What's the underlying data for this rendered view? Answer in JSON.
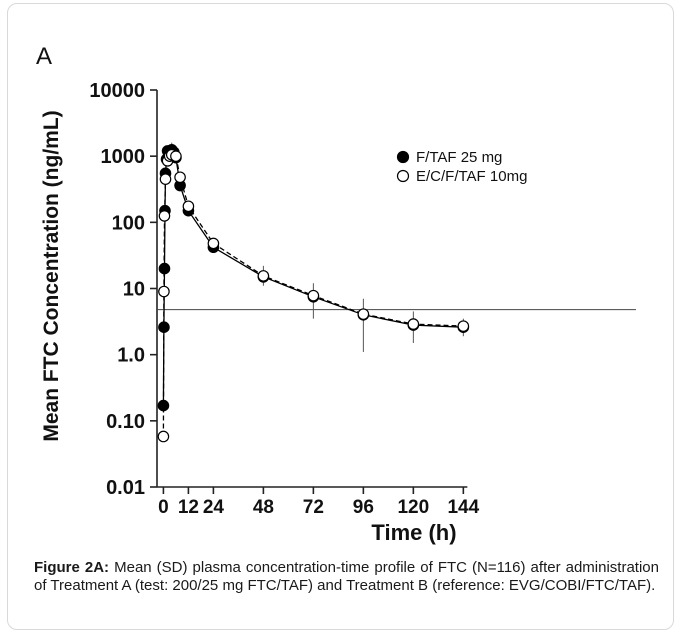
{
  "figure": {
    "panel_label": "A",
    "caption_bold": "Figure 2A:",
    "caption_text": " Mean (SD) plasma concentration-time profile of FTC (N=116) after administration of Treatment A (test: 200/25 mg FTC/TAF) and Treatment B (reference: EVG/COBI/FTC/TAF)."
  },
  "chart_data": {
    "type": "line",
    "xlabel": "Time (h)",
    "ylabel": "Mean FTC Concentration (ng/mL)",
    "y_scale": "log",
    "ylim": [
      0.01,
      10000
    ],
    "xlim": [
      -5,
      152
    ],
    "x_ticks": [
      0,
      12,
      24,
      48,
      72,
      96,
      120,
      144
    ],
    "x_tick_labels": [
      "0",
      "12",
      "24",
      "48",
      "72",
      "96",
      "120",
      "144"
    ],
    "y_ticks": [
      0.01,
      0.1,
      1,
      10,
      100,
      1000,
      10000
    ],
    "y_tick_labels": [
      "0.01",
      "0.10",
      "1.0",
      "10",
      "100",
      "1000",
      "10000"
    ],
    "reference_line": 4.8,
    "legend_position": "top-right",
    "series": [
      {
        "name": "F/TAF 25 mg",
        "marker": "filled-circle",
        "line_style": "solid",
        "color": "#000000",
        "x": [
          0,
          0.25,
          0.5,
          0.75,
          1,
          1.5,
          2,
          2.5,
          3,
          4,
          5,
          6,
          8,
          12,
          24,
          48,
          72,
          96,
          120,
          144
        ],
        "y": [
          0.17,
          2.6,
          20,
          150,
          550,
          900,
          1200,
          1100,
          1050,
          1250,
          1150,
          950,
          360,
          150,
          42,
          15,
          7.5,
          4,
          2.8,
          2.6
        ],
        "sd_upper": [
          null,
          null,
          null,
          null,
          null,
          null,
          null,
          null,
          null,
          1600,
          null,
          null,
          null,
          null,
          null,
          22,
          12,
          7,
          4.5,
          3.5
        ],
        "sd_lower": [
          null,
          null,
          null,
          null,
          null,
          null,
          null,
          null,
          null,
          900,
          null,
          null,
          null,
          null,
          null,
          11,
          3.5,
          1.1,
          1.5,
          1.9
        ]
      },
      {
        "name": "E/C/F/TAF 10mg",
        "marker": "open-circle",
        "line_style": "dashed",
        "color": "#000000",
        "x": [
          0,
          0.25,
          0.5,
          1,
          2,
          3,
          4,
          6,
          8,
          12,
          24,
          48,
          72,
          96,
          120,
          144
        ],
        "y": [
          0.058,
          9,
          125,
          450,
          850,
          1000,
          1050,
          1000,
          480,
          175,
          48,
          15.5,
          7.8,
          4.1,
          2.9,
          2.7
        ],
        "sd_upper": [
          null,
          null,
          null,
          null,
          null,
          null,
          null,
          null,
          null,
          null,
          null,
          null,
          null,
          null,
          null,
          null
        ],
        "sd_lower": [
          null,
          1.4,
          null,
          null,
          null,
          null,
          null,
          null,
          null,
          null,
          null,
          null,
          null,
          null,
          null,
          null
        ]
      }
    ]
  }
}
